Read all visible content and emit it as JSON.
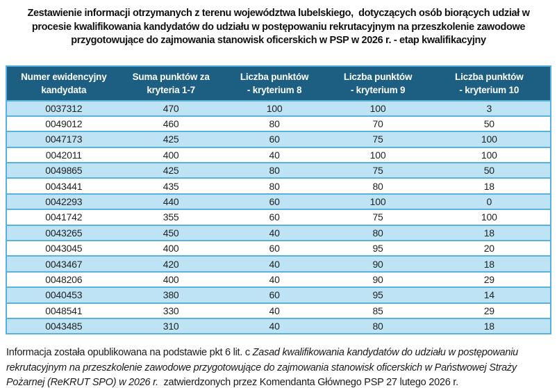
{
  "title": {
    "lines": [
      "Zestawienie informacji otrzymanych z terenu województwa lubelskiego,  dotyczących osób biorących udział w",
      "procesie kwalifikowania kandydatów do udziału w postępowaniu rekrutacyjnym na przeszkolenie zawodowe",
      "przygotowujące do zajmowania stanowisk oficerskich w PSP w 2026 r. - etap kwalifikacyjny"
    ]
  },
  "table": {
    "columns": [
      {
        "line1": "Numer ewidencyjny",
        "line2": "kandydata"
      },
      {
        "line1": "Suma punktów za",
        "line2": "kryteria 1-7"
      },
      {
        "line1": "Liczba punktów",
        "line2": "- kryterium 8"
      },
      {
        "line1": "Liczba punktów",
        "line2": "- kryterium 9"
      },
      {
        "line1": "Liczba punktów",
        "line2": "- kryterium 10"
      }
    ],
    "rows": [
      [
        "0037312",
        "470",
        "100",
        "100",
        "3"
      ],
      [
        "0049012",
        "460",
        "80",
        "70",
        "50"
      ],
      [
        "0047173",
        "425",
        "60",
        "75",
        "100"
      ],
      [
        "0042011",
        "400",
        "40",
        "100",
        "100"
      ],
      [
        "0049865",
        "425",
        "80",
        "75",
        "50"
      ],
      [
        "0043441",
        "435",
        "80",
        "80",
        "18"
      ],
      [
        "0042293",
        "440",
        "60",
        "100",
        "0"
      ],
      [
        "0041742",
        "355",
        "60",
        "75",
        "100"
      ],
      [
        "0043265",
        "450",
        "40",
        "80",
        "18"
      ],
      [
        "0043045",
        "400",
        "60",
        "95",
        "20"
      ],
      [
        "0043467",
        "420",
        "40",
        "90",
        "18"
      ],
      [
        "0048206",
        "400",
        "40",
        "90",
        "29"
      ],
      [
        "0040453",
        "380",
        "60",
        "95",
        "14"
      ],
      [
        "0048541",
        "330",
        "40",
        "85",
        "29"
      ],
      [
        "0043485",
        "310",
        "40",
        "80",
        "18"
      ]
    ]
  },
  "footer": {
    "normal_prefix": "Informacja została opublikowana na podstawie pkt 6 lit. c ",
    "italic_citation": "Zasad kwalifikowania kandydatów do udziału w postępowaniu rekrutacyjnym na przeszkolenie zawodowe przygotowujące do zajmowania stanowisk oficerskich w Państwowej Straży Pożarnej (ReKRUT SPO) w 2026 r.",
    "normal_suffix": "  zatwierdzonych przez Komendanta Głównego PSP 27 lutego 2026 r."
  },
  "colors": {
    "header_bg": "#1d5f83",
    "header_text": "#ffffff",
    "row_alt_bg": "#bee3f4",
    "row_bg": "#ffffff",
    "table_border": "#57b3de",
    "body_text": "#222222",
    "title_text": "#111111"
  }
}
